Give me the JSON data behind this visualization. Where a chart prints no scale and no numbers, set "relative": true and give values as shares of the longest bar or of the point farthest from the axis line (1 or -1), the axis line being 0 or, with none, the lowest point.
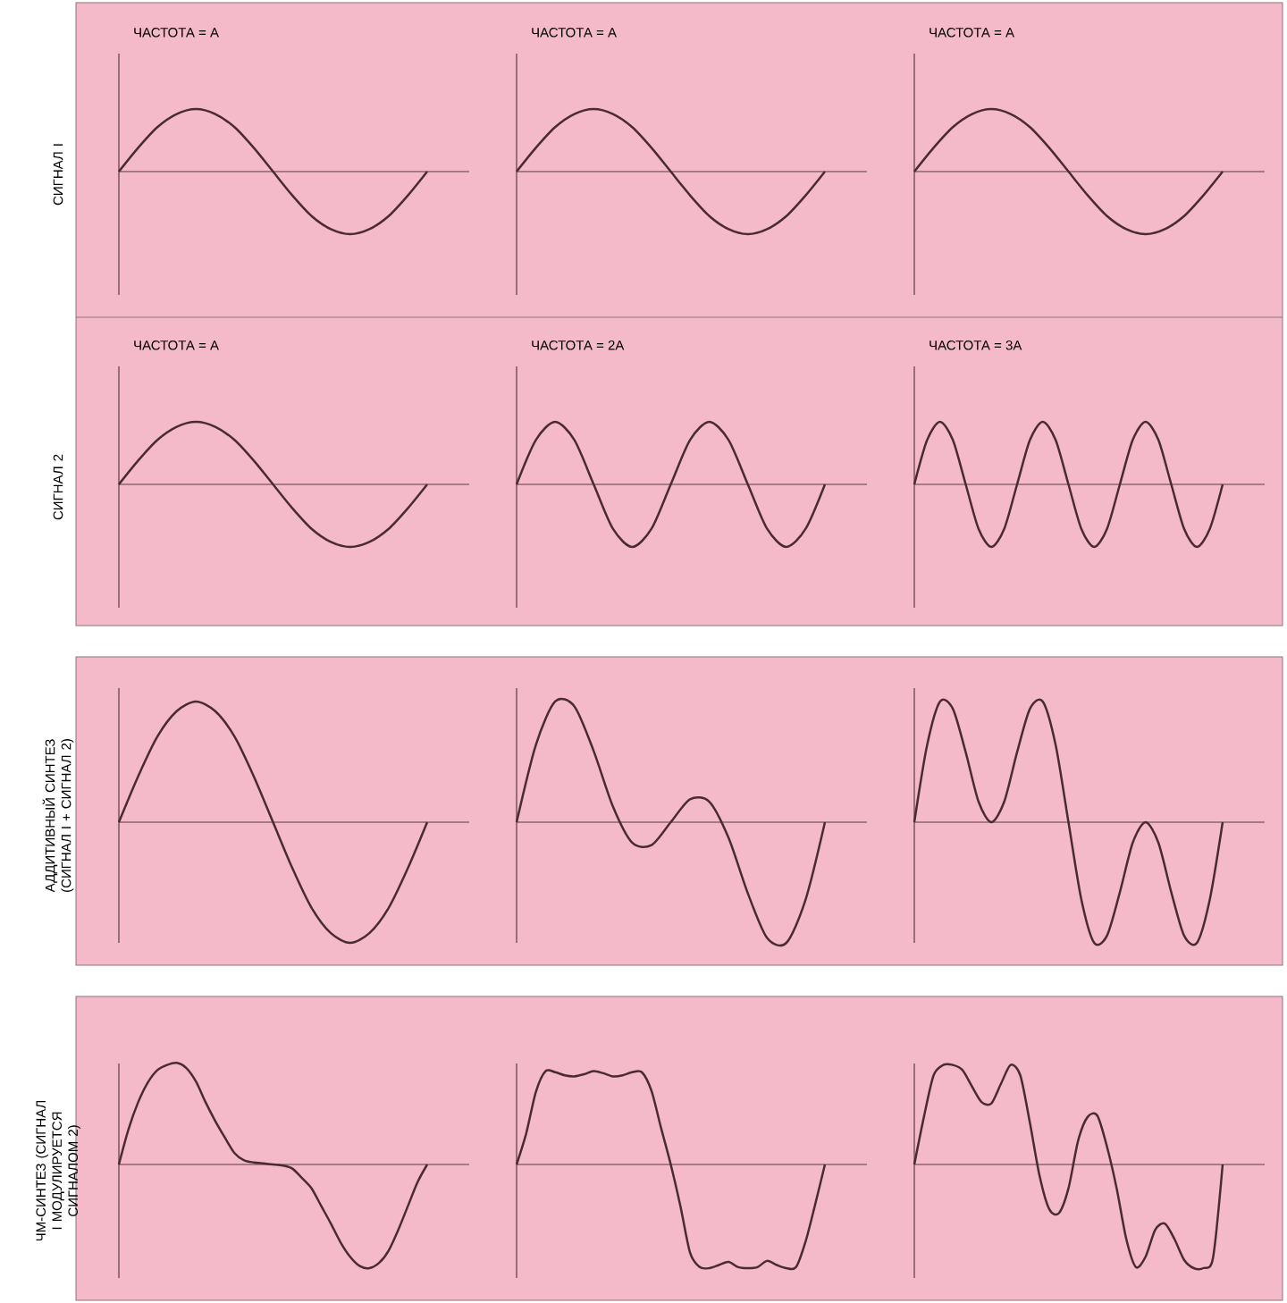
{
  "chart_data": [
    {
      "type": "line",
      "relative": true,
      "tick_labels": false,
      "title": "ЧАСТОТА = A",
      "ylabel": "СИГНАЛ I",
      "color": "#4a2a33",
      "categories": [
        null,
        null,
        null,
        null,
        null,
        null,
        null,
        null,
        null,
        null,
        null,
        null,
        null,
        null,
        null,
        null,
        null
      ],
      "values": [
        0,
        0.38,
        0.71,
        0.92,
        1,
        0.92,
        0.71,
        0.38,
        0,
        -0.38,
        -0.71,
        -0.92,
        -1,
        -0.92,
        -0.71,
        -0.38,
        0
      ]
    },
    {
      "type": "line",
      "relative": true,
      "tick_labels": false,
      "title": "ЧАСТОТА = A",
      "color": "#4a2a33",
      "categories": [
        null,
        null,
        null,
        null,
        null,
        null,
        null,
        null,
        null,
        null,
        null,
        null,
        null,
        null,
        null,
        null,
        null
      ],
      "values": [
        0,
        0.38,
        0.71,
        0.92,
        1,
        0.92,
        0.71,
        0.38,
        0,
        -0.38,
        -0.71,
        -0.92,
        -1,
        -0.92,
        -0.71,
        -0.38,
        0
      ]
    },
    {
      "type": "line",
      "relative": true,
      "tick_labels": false,
      "title": "ЧАСТОТА = A",
      "color": "#4a2a33",
      "categories": [
        null,
        null,
        null,
        null,
        null,
        null,
        null,
        null,
        null,
        null,
        null,
        null,
        null,
        null,
        null,
        null,
        null
      ],
      "values": [
        0,
        0.38,
        0.71,
        0.92,
        1,
        0.92,
        0.71,
        0.38,
        0,
        -0.38,
        -0.71,
        -0.92,
        -1,
        -0.92,
        -0.71,
        -0.38,
        0
      ]
    },
    {
      "type": "line",
      "relative": true,
      "tick_labels": false,
      "title": "ЧАСТОТА = A",
      "ylabel": "СИГНАЛ 2",
      "color": "#4a2a33",
      "categories": [
        null,
        null,
        null,
        null,
        null,
        null,
        null,
        null,
        null,
        null,
        null,
        null,
        null,
        null,
        null,
        null,
        null
      ],
      "values": [
        0,
        0.38,
        0.71,
        0.92,
        1,
        0.92,
        0.71,
        0.38,
        0,
        -0.38,
        -0.71,
        -0.92,
        -1,
        -0.92,
        -0.71,
        -0.38,
        0
      ]
    },
    {
      "type": "line",
      "relative": true,
      "tick_labels": false,
      "title": "ЧАСТОТА = 2A",
      "color": "#4a2a33",
      "categories": [
        null,
        null,
        null,
        null,
        null,
        null,
        null,
        null,
        null,
        null,
        null,
        null,
        null,
        null,
        null,
        null,
        null
      ],
      "values": [
        0,
        0.71,
        1,
        0.71,
        0,
        -0.71,
        -1,
        -0.71,
        0,
        0.71,
        1,
        0.71,
        0,
        -0.71,
        -1,
        -0.71,
        0
      ]
    },
    {
      "type": "line",
      "relative": true,
      "tick_labels": false,
      "title": "ЧАСТОТА = 3A",
      "color": "#4a2a33",
      "categories": [
        null,
        null,
        null,
        null,
        null,
        null,
        null,
        null,
        null,
        null,
        null,
        null,
        null,
        null,
        null,
        null,
        null,
        null,
        null,
        null,
        null,
        null,
        null,
        null,
        null
      ],
      "values": [
        0,
        0.71,
        1,
        0.71,
        0,
        -0.71,
        -1,
        -0.71,
        0,
        0.71,
        1,
        0.71,
        0,
        -0.71,
        -1,
        -0.71,
        0,
        0.71,
        1,
        0.71,
        0,
        -0.71,
        -1,
        -0.71,
        0
      ]
    },
    {
      "type": "line",
      "relative": true,
      "tick_labels": false,
      "ylabel": "АДДИТИВНЫЙ СИНТЕЗ (СИГНАЛ I + СИГНАЛ 2)",
      "color": "#4a2a33",
      "categories": [
        null,
        null,
        null,
        null,
        null,
        null,
        null,
        null,
        null,
        null,
        null,
        null,
        null,
        null,
        null,
        null,
        null
      ],
      "values": [
        0,
        0.38,
        0.71,
        0.92,
        1,
        0.92,
        0.71,
        0.38,
        0,
        -0.38,
        -0.71,
        -0.92,
        -1,
        -0.92,
        -0.71,
        -0.38,
        0
      ]
    },
    {
      "type": "line",
      "relative": true,
      "tick_labels": false,
      "color": "#4a2a33",
      "categories": [
        null,
        null,
        null,
        null,
        null,
        null,
        null,
        null,
        null,
        null,
        null,
        null,
        null,
        null,
        null,
        null,
        null
      ],
      "values": [
        0,
        0.64,
        1,
        0.96,
        0.59,
        0.13,
        -0.17,
        -0.19,
        0,
        0.19,
        0.17,
        -0.13,
        -0.59,
        -0.96,
        -1,
        -0.64,
        0
      ]
    },
    {
      "type": "line",
      "relative": true,
      "tick_labels": false,
      "color": "#4a2a33",
      "categories": [
        null,
        null,
        null,
        null,
        null,
        null,
        null,
        null,
        null,
        null,
        null,
        null,
        null,
        null,
        null,
        null,
        null,
        null,
        null,
        null,
        null,
        null,
        null,
        null,
        null
      ],
      "values": [
        0,
        0.64,
        1,
        0.94,
        0.58,
        0.17,
        0,
        0.17,
        0.58,
        0.94,
        1,
        0.64,
        0,
        -0.64,
        -1,
        -0.94,
        -0.58,
        -0.17,
        0,
        -0.17,
        -0.58,
        -0.94,
        -1,
        -0.64,
        0
      ]
    },
    {
      "type": "line",
      "relative": true,
      "tick_labels": false,
      "ylabel": "ЧМ-СИНТЕЗ (СИГНАЛ I МОДУЛИРУЕТСЯ СИГНАЛОМ 2)",
      "color": "#4a2a33",
      "categories": [
        null,
        null,
        null,
        null,
        null,
        null,
        null,
        null,
        null,
        null,
        null,
        null,
        null,
        null,
        null,
        null,
        null,
        null,
        null,
        null,
        null,
        null,
        null,
        null,
        null,
        null,
        null,
        null,
        null,
        null,
        null,
        null,
        null
      ],
      "values": [
        0,
        0.34,
        0.6,
        0.79,
        0.91,
        0.96,
        0.98,
        0.93,
        0.8,
        0.6,
        0.42,
        0.26,
        0.11,
        0.04,
        0.02,
        0.01,
        0,
        -0.01,
        -0.04,
        -0.13,
        -0.23,
        -0.4,
        -0.57,
        -0.75,
        -0.89,
        -0.98,
        -1,
        -0.95,
        -0.83,
        -0.63,
        -0.4,
        -0.17,
        0
      ]
    },
    {
      "type": "line",
      "relative": true,
      "tick_labels": false,
      "color": "#4a2a33",
      "categories": [
        null,
        null,
        null,
        null,
        null,
        null,
        null,
        null,
        null,
        null,
        null,
        null,
        null,
        null,
        null,
        null,
        null,
        null,
        null,
        null,
        null,
        null,
        null,
        null,
        null,
        null,
        null,
        null,
        null,
        null,
        null,
        null,
        null
      ],
      "values": [
        0,
        0.3,
        0.7,
        0.9,
        0.89,
        0.86,
        0.85,
        0.87,
        0.9,
        0.88,
        0.85,
        0.86,
        0.89,
        0.89,
        0.71,
        0.35,
        0,
        -0.4,
        -0.85,
        -0.99,
        -1,
        -0.97,
        -0.94,
        -0.99,
        -1,
        -0.99,
        -0.93,
        -0.97,
        -1,
        -0.99,
        -0.74,
        -0.38,
        0
      ]
    },
    {
      "type": "line",
      "relative": true,
      "tick_labels": false,
      "color": "#4a2a33",
      "categories": [
        null,
        null,
        null,
        null,
        null,
        null,
        null,
        null,
        null,
        null,
        null,
        null,
        null,
        null,
        null,
        null,
        null,
        null,
        null,
        null,
        null,
        null,
        null,
        null,
        null,
        null,
        null,
        null,
        null,
        null,
        null,
        null,
        null
      ],
      "values": [
        0,
        0.46,
        0.86,
        0.96,
        0.96,
        0.91,
        0.75,
        0.6,
        0.59,
        0.78,
        0.96,
        0.86,
        0.4,
        -0.11,
        -0.43,
        -0.47,
        -0.23,
        0.23,
        0.46,
        0.47,
        0.17,
        -0.23,
        -0.72,
        -0.99,
        -0.89,
        -0.63,
        -0.57,
        -0.72,
        -0.92,
        -1,
        -1,
        -0.9,
        0
      ]
    }
  ]
}
